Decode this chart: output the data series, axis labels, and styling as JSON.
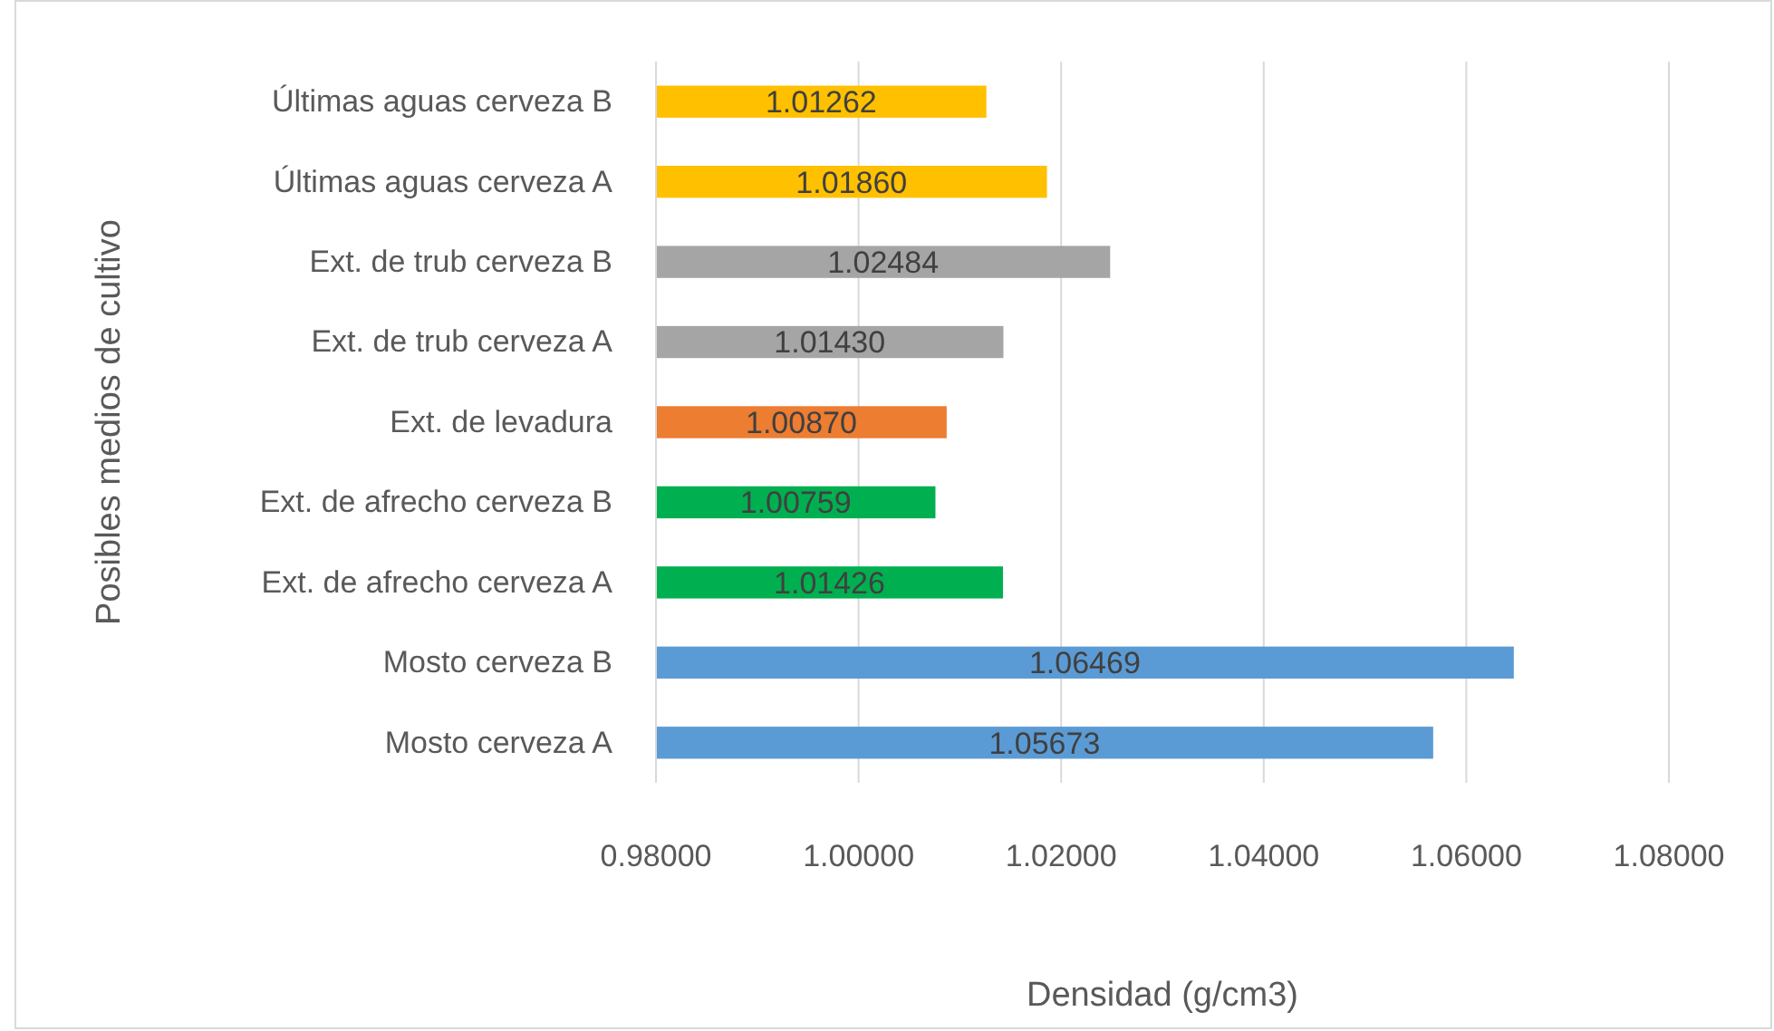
{
  "chart_data": {
    "type": "bar",
    "orientation": "horizontal",
    "xlabel": "Densidad (g/cm3)",
    "ylabel": "Posibles medios de cultivo",
    "categories": [
      "Últimas aguas cerveza B",
      "Últimas aguas cerveza A",
      "Ext. de trub cerveza B",
      "Ext. de trub cerveza A",
      "Ext. de levadura",
      "Ext. de afrecho cerveza B",
      "Ext. de afrecho cerveza A",
      "Mosto cerveza B",
      "Mosto cerveza A"
    ],
    "values": [
      1.01262,
      1.0186,
      1.02484,
      1.0143,
      1.0087,
      1.00759,
      1.01426,
      1.06469,
      1.05673
    ],
    "value_labels": [
      "1.01262",
      "1.01860",
      "1.02484",
      "1.01430",
      "1.00870",
      "1.00759",
      "1.01426",
      "1.06469",
      "1.05673"
    ],
    "colors": [
      "#ffc000",
      "#ffc000",
      "#a5a5a5",
      "#a5a5a5",
      "#ed7d31",
      "#00b050",
      "#00b050",
      "#5b9bd5",
      "#5b9bd5"
    ],
    "xlim": [
      0.98,
      1.08
    ],
    "xticks": [
      {
        "value": 0.98,
        "label": "0.98000"
      },
      {
        "value": 1.0,
        "label": "1.00000"
      },
      {
        "value": 1.02,
        "label": "1.02000"
      },
      {
        "value": 1.04,
        "label": "1.04000"
      },
      {
        "value": 1.06,
        "label": "1.06000"
      },
      {
        "value": 1.08,
        "label": "1.08000"
      }
    ],
    "grid": "x"
  }
}
